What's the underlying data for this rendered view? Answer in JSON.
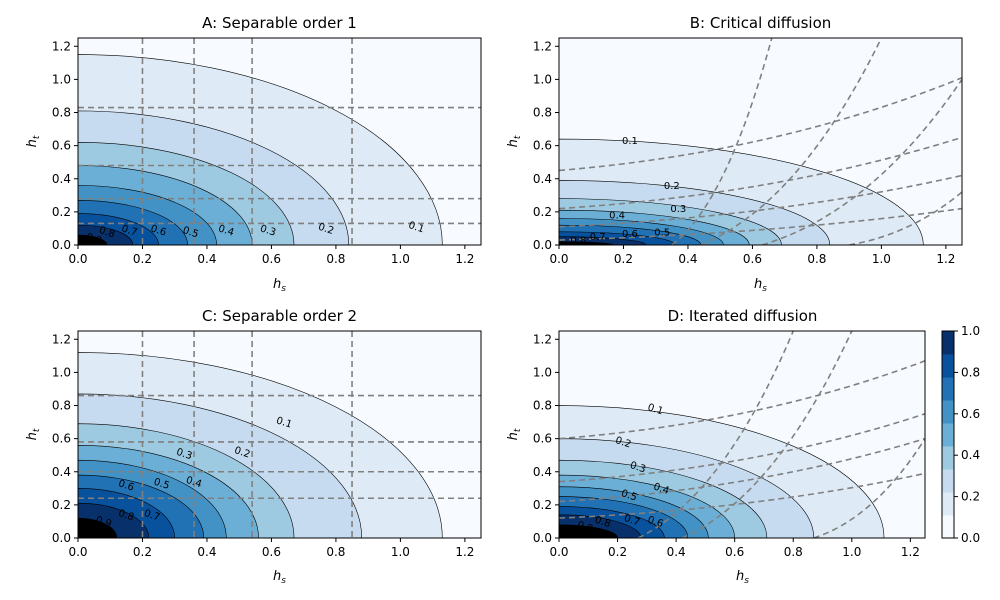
{
  "figure": {
    "colormap": [
      "#f7fbff",
      "#deebf7",
      "#c6dbef",
      "#9ecae1",
      "#6baed6",
      "#4292c6",
      "#2171b5",
      "#08519c",
      "#08306b"
    ],
    "guide_color": "#808080"
  },
  "colorbar": {
    "ticks": [
      "0.0",
      "0.2",
      "0.4",
      "0.6",
      "0.8",
      "1.0"
    ]
  },
  "chart_data": [
    {
      "id": "A",
      "type": "contour",
      "title": "A: Separable order 1",
      "xlabel": "h",
      "xlabel_sub": "s",
      "ylabel": "h",
      "ylabel_sub": "t",
      "xlim": [
        0,
        1.25
      ],
      "ylim": [
        0,
        1.25
      ],
      "xticks": [
        "0.0",
        "0.2",
        "0.4",
        "0.6",
        "0.8",
        "1.0",
        "1.2"
      ],
      "yticks": [
        "0.0",
        "0.2",
        "0.4",
        "0.6",
        "0.8",
        "1.0",
        "1.2"
      ],
      "levels": [
        0.1,
        0.2,
        0.3,
        0.4,
        0.5,
        0.6,
        0.7,
        0.8,
        0.9
      ],
      "contour_intercepts": {
        "x": [
          1.13,
          0.84,
          0.67,
          0.54,
          0.43,
          0.34,
          0.25,
          0.17,
          0.09
        ],
        "y": [
          1.15,
          0.81,
          0.62,
          0.48,
          0.36,
          0.27,
          0.19,
          0.12,
          0.06
        ]
      },
      "contour_labels": [
        {
          "text": "0.1",
          "x": 1.05,
          "y": 0.11
        },
        {
          "text": "0.2",
          "x": 0.77,
          "y": 0.1
        },
        {
          "text": "0.3",
          "x": 0.59,
          "y": 0.09
        },
        {
          "text": "0.4",
          "x": 0.46,
          "y": 0.09
        },
        {
          "text": "0.5",
          "x": 0.35,
          "y": 0.08
        },
        {
          "text": "0.6",
          "x": 0.25,
          "y": 0.09
        },
        {
          "text": "0.7",
          "x": 0.16,
          "y": 0.09
        },
        {
          "text": "0.8",
          "x": 0.09,
          "y": 0.08
        },
        {
          "text": "0.9",
          "x": 0.05,
          "y": 0.04
        }
      ],
      "guides": {
        "vertical": [
          0.2,
          0.36,
          0.54,
          0.85
        ],
        "horizontal": [
          0.13,
          0.28,
          0.48,
          0.83
        ]
      }
    },
    {
      "id": "B",
      "type": "contour",
      "title": "B: Critical diffusion",
      "xlabel": "h",
      "xlabel_sub": "s",
      "ylabel": "h",
      "ylabel_sub": "t",
      "xlim": [
        0,
        1.25
      ],
      "ylim": [
        0,
        1.25
      ],
      "xticks": [
        "0.0",
        "0.2",
        "0.4",
        "0.6",
        "0.8",
        "1.0",
        "1.2"
      ],
      "yticks": [
        "0.0",
        "0.2",
        "0.4",
        "0.6",
        "0.8",
        "1.0",
        "1.2"
      ],
      "levels": [
        0.1,
        0.2,
        0.3,
        0.4,
        0.5,
        0.6,
        0.7,
        0.8,
        0.9
      ],
      "contour_intercepts": {
        "x": [
          1.13,
          0.84,
          0.69,
          0.59,
          0.51,
          0.44,
          0.36,
          0.27,
          0.17
        ],
        "y": [
          0.64,
          0.39,
          0.28,
          0.21,
          0.16,
          0.12,
          0.08,
          0.05,
          0.02
        ]
      },
      "contour_labels": [
        {
          "text": "0.1",
          "x": 0.22,
          "y": 0.63
        },
        {
          "text": "0.2",
          "x": 0.35,
          "y": 0.36
        },
        {
          "text": "0.3",
          "x": 0.37,
          "y": 0.22
        },
        {
          "text": "0.4",
          "x": 0.18,
          "y": 0.18
        },
        {
          "text": "0.5",
          "x": 0.32,
          "y": 0.08
        },
        {
          "text": "0.6",
          "x": 0.22,
          "y": 0.07
        },
        {
          "text": "0.7",
          "x": 0.12,
          "y": 0.05
        },
        {
          "text": "0.8",
          "x": 0.06,
          "y": 0.03
        }
      ],
      "guides": {
        "curves_from_y": [
          {
            "y0": 0.45,
            "x1": 1.25,
            "y1": 1.01
          },
          {
            "y0": 0.22,
            "x1": 1.25,
            "y1": 0.65
          },
          {
            "y0": 0.11,
            "x1": 1.25,
            "y1": 0.42
          },
          {
            "y0": 0.03,
            "x1": 1.25,
            "y1": 0.22
          }
        ],
        "curves_from_x": [
          {
            "x0": 0.35,
            "x1": 0.66,
            "y1": 1.25
          },
          {
            "x0": 0.44,
            "x1": 1.0,
            "y1": 1.25
          },
          {
            "x0": 0.63,
            "x1": 1.25,
            "y1": 1.0
          },
          {
            "x0": 0.9,
            "x1": 1.25,
            "y1": 0.32
          }
        ]
      }
    },
    {
      "id": "C",
      "type": "contour",
      "title": "C: Separable order 2",
      "xlabel": "h",
      "xlabel_sub": "s",
      "ylabel": "h",
      "ylabel_sub": "t",
      "xlim": [
        0,
        1.25
      ],
      "ylim": [
        0,
        1.25
      ],
      "xticks": [
        "0.0",
        "0.2",
        "0.4",
        "0.6",
        "0.8",
        "1.0",
        "1.2"
      ],
      "yticks": [
        "0.0",
        "0.2",
        "0.4",
        "0.6",
        "0.8",
        "1.0",
        "1.2"
      ],
      "levels": [
        0.1,
        0.2,
        0.3,
        0.4,
        0.5,
        0.6,
        0.7,
        0.8,
        0.9
      ],
      "contour_intercepts": {
        "x": [
          1.13,
          0.88,
          0.67,
          0.56,
          0.46,
          0.39,
          0.3,
          0.22,
          0.12
        ],
        "y": [
          1.12,
          0.87,
          0.69,
          0.56,
          0.47,
          0.38,
          0.3,
          0.21,
          0.12
        ]
      },
      "contour_labels": [
        {
          "text": "0.1",
          "x": 0.64,
          "y": 0.7
        },
        {
          "text": "0.2",
          "x": 0.51,
          "y": 0.52
        },
        {
          "text": "0.3",
          "x": 0.33,
          "y": 0.51
        },
        {
          "text": "0.4",
          "x": 0.36,
          "y": 0.34
        },
        {
          "text": "0.5",
          "x": 0.26,
          "y": 0.33
        },
        {
          "text": "0.6",
          "x": 0.15,
          "y": 0.32
        },
        {
          "text": "0.7",
          "x": 0.23,
          "y": 0.14
        },
        {
          "text": "0.8",
          "x": 0.15,
          "y": 0.14
        },
        {
          "text": "0.9",
          "x": 0.08,
          "y": 0.1
        }
      ],
      "guides": {
        "vertical": [
          0.2,
          0.36,
          0.54,
          0.85
        ],
        "horizontal": [
          0.24,
          0.4,
          0.58,
          0.86
        ]
      }
    },
    {
      "id": "D",
      "type": "contour",
      "title": "D: Iterated diffusion",
      "xlabel": "h",
      "xlabel_sub": "s",
      "ylabel": "h",
      "ylabel_sub": "t",
      "xlim": [
        0,
        1.25
      ],
      "ylim": [
        0,
        1.25
      ],
      "xticks": [
        "0.0",
        "0.2",
        "0.4",
        "0.6",
        "0.8",
        "1.0",
        "1.2"
      ],
      "yticks": [
        "0.0",
        "0.2",
        "0.4",
        "0.6",
        "0.8",
        "1.0",
        "1.2"
      ],
      "levels": [
        0.1,
        0.2,
        0.3,
        0.4,
        0.5,
        0.6,
        0.7,
        0.8,
        0.9
      ],
      "contour_intercepts": {
        "x": [
          1.11,
          0.87,
          0.71,
          0.6,
          0.51,
          0.44,
          0.36,
          0.28,
          0.2
        ],
        "y": [
          0.8,
          0.6,
          0.47,
          0.38,
          0.31,
          0.25,
          0.19,
          0.14,
          0.08
        ]
      },
      "contour_labels": [
        {
          "text": "0.1",
          "x": 0.33,
          "y": 0.78
        },
        {
          "text": "0.2",
          "x": 0.22,
          "y": 0.58
        },
        {
          "text": "0.3",
          "x": 0.27,
          "y": 0.43
        },
        {
          "text": "0.4",
          "x": 0.35,
          "y": 0.3
        },
        {
          "text": "0.5",
          "x": 0.24,
          "y": 0.26
        },
        {
          "text": "0.6",
          "x": 0.33,
          "y": 0.1
        },
        {
          "text": "0.7",
          "x": 0.25,
          "y": 0.11
        },
        {
          "text": "0.8",
          "x": 0.15,
          "y": 0.1
        },
        {
          "text": "0.9",
          "x": 0.09,
          "y": 0.07
        }
      ],
      "guides": {
        "curves_from_y": [
          {
            "y0": 0.6,
            "x1": 1.25,
            "y1": 1.07
          },
          {
            "y0": 0.34,
            "x1": 1.25,
            "y1": 0.75
          },
          {
            "y0": 0.22,
            "x1": 1.25,
            "y1": 0.6
          },
          {
            "y0": 0.12,
            "x1": 1.25,
            "y1": 0.39
          }
        ],
        "curves_from_x": [
          {
            "x0": 0.27,
            "x1": 0.8,
            "y1": 1.25
          },
          {
            "x0": 0.42,
            "x1": 1.0,
            "y1": 1.25
          },
          {
            "x0": 0.87,
            "x1": 1.25,
            "y1": 0.6
          }
        ]
      }
    }
  ]
}
